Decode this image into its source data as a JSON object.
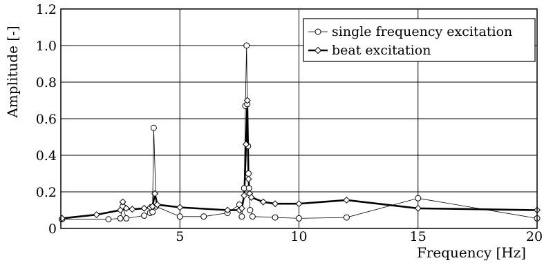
{
  "chart_data": {
    "type": "line",
    "title": "",
    "xlabel": "Frequency  [Hz]",
    "ylabel": "Amplitude  [-]",
    "xlim": [
      0,
      20
    ],
    "ylim": [
      0,
      1.2
    ],
    "xticks": [
      5,
      10,
      15,
      20
    ],
    "xtick_labels": [
      "5",
      "10",
      "15",
      "20"
    ],
    "yticks": [
      0,
      0.2,
      0.4,
      0.6,
      0.8,
      1.0,
      1.2
    ],
    "ytick_labels": [
      "0",
      "0.2",
      "0.4",
      "0.6",
      "0.8",
      "1.0",
      "1.2"
    ],
    "grid": true,
    "legend_position": "top-right",
    "series": [
      {
        "name": "single frequency excitation",
        "marker": "circle",
        "line_weight": "thin",
        "color": "#000000",
        "x": [
          0.05,
          2.0,
          2.5,
          2.6,
          2.75,
          3.5,
          3.75,
          3.85,
          3.9,
          4.0,
          5.0,
          6.0,
          7.0,
          7.5,
          7.6,
          7.7,
          7.75,
          7.8,
          7.83,
          7.86,
          7.88,
          7.9,
          7.95,
          8.05,
          9.0,
          10.0,
          12.0,
          15.0,
          20.0
        ],
        "y": [
          0.05,
          0.05,
          0.055,
          0.12,
          0.055,
          0.07,
          0.085,
          0.09,
          0.55,
          0.12,
          0.065,
          0.065,
          0.085,
          0.13,
          0.065,
          0.22,
          0.67,
          1.0,
          0.68,
          0.45,
          0.3,
          0.22,
          0.1,
          0.065,
          0.06,
          0.055,
          0.06,
          0.165,
          0.055
        ]
      },
      {
        "name": "beat excitation",
        "marker": "diamond",
        "line_weight": "thick",
        "color": "#000000",
        "x": [
          0.05,
          1.5,
          2.5,
          2.6,
          2.75,
          3.0,
          3.5,
          3.75,
          3.85,
          3.95,
          4.05,
          5.0,
          7.0,
          7.5,
          7.6,
          7.7,
          7.78,
          7.83,
          7.88,
          7.93,
          8.0,
          8.5,
          9.0,
          10.0,
          12.0,
          15.0,
          20.0
        ],
        "y": [
          0.055,
          0.075,
          0.1,
          0.145,
          0.11,
          0.105,
          0.11,
          0.115,
          0.12,
          0.19,
          0.13,
          0.115,
          0.1,
          0.1,
          0.11,
          0.18,
          0.46,
          0.7,
          0.27,
          0.19,
          0.17,
          0.145,
          0.135,
          0.135,
          0.155,
          0.11,
          0.1
        ]
      }
    ]
  }
}
